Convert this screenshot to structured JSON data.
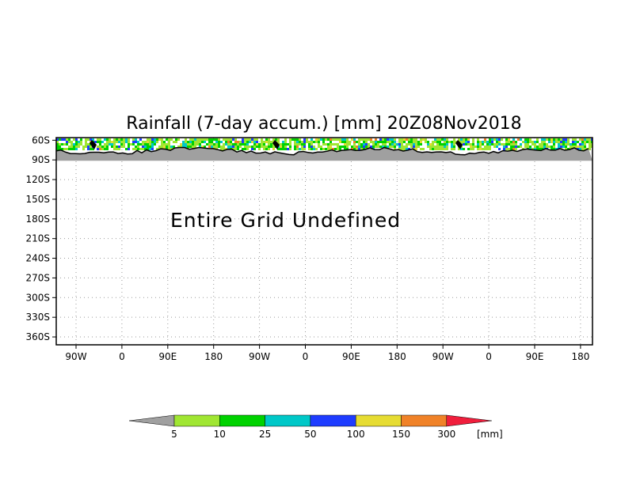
{
  "chart_data": {
    "type": "heatmap",
    "title": "Rainfall (7-day accum.) [mm] 20Z08Nov2018",
    "x_tick_labels": [
      "90W",
      "0",
      "90E",
      "180",
      "90W",
      "0",
      "90E",
      "180",
      "90W",
      "0",
      "90E",
      "180"
    ],
    "y_tick_labels": [
      "60S",
      "90S",
      "120S",
      "150S",
      "180S",
      "210S",
      "240S",
      "270S",
      "300S",
      "330S",
      "360S"
    ],
    "y_tick_values": [
      -60,
      -90,
      -120,
      -150,
      -180,
      -210,
      -240,
      -270,
      -300,
      -330,
      -360
    ],
    "ylim": [
      -372,
      -56
    ],
    "grid": true,
    "annotation": "Entire Grid Undefined",
    "colorbar": {
      "unit": "[mm]",
      "bins": [
        {
          "label": "",
          "color": "#a0a0a0"
        },
        {
          "label": "5",
          "color": "#a0e632"
        },
        {
          "label": "10",
          "color": "#00d200"
        },
        {
          "label": "25",
          "color": "#00c8c8"
        },
        {
          "label": "50",
          "color": "#1e3cff"
        },
        {
          "label": "100",
          "color": "#e6dc32"
        },
        {
          "label": "150",
          "color": "#f08228"
        },
        {
          "label": "300",
          "color": "#f01e3c"
        }
      ]
    }
  }
}
